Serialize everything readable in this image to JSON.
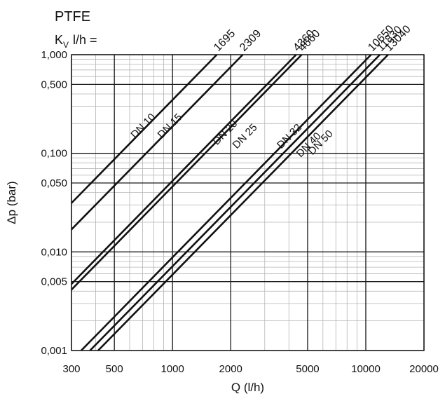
{
  "header": {
    "material": "PTFE",
    "kv_prefix": "K",
    "kv_subscript": "V",
    "kv_suffix": "l/h ="
  },
  "chart_data": {
    "type": "line",
    "title": "PTFE",
    "xlabel": "Q (l/h)",
    "ylabel": "Δp (bar)",
    "x_scale": "log",
    "y_scale": "log",
    "xlim": [
      300,
      20000
    ],
    "ylim": [
      0.001,
      1
    ],
    "grid": true,
    "x_ticks": [
      {
        "value": 300,
        "label": "300"
      },
      {
        "value": 500,
        "label": "500"
      },
      {
        "value": 1000,
        "label": "1000"
      },
      {
        "value": 2000,
        "label": "2000"
      },
      {
        "value": 5000,
        "label": "5000"
      },
      {
        "value": 10000,
        "label": "10000"
      },
      {
        "value": 20000,
        "label": "20000"
      }
    ],
    "y_ticks": [
      {
        "value": 0.001,
        "label": "0,001"
      },
      {
        "value": 0.005,
        "label": "0,005"
      },
      {
        "value": 0.01,
        "label": "0,010"
      },
      {
        "value": 0.05,
        "label": "0,050"
      },
      {
        "value": 0.1,
        "label": "0,100"
      },
      {
        "value": 0.5,
        "label": "0,500"
      },
      {
        "value": 1,
        "label": "1,000"
      }
    ],
    "series": [
      {
        "name": "DN 10",
        "kv": 1695,
        "kv_label": "1695",
        "x": [
          300,
          1695
        ],
        "y": [
          0.0313,
          1.0
        ]
      },
      {
        "name": "DN 15",
        "kv": 2309,
        "kv_label": "2309",
        "x": [
          300,
          2309
        ],
        "y": [
          0.0169,
          1.0
        ]
      },
      {
        "name": "DN 20",
        "kv": 4360,
        "kv_label": "4360",
        "x": [
          300,
          4360
        ],
        "y": [
          0.00473,
          1.0
        ]
      },
      {
        "name": "DN 25",
        "kv": 4660,
        "kv_label": "4660",
        "x": [
          300,
          4660
        ],
        "y": [
          0.00414,
          1.0
        ]
      },
      {
        "name": "DN 32",
        "kv": 10650,
        "kv_label": "10650",
        "x": [
          337,
          10650
        ],
        "y": [
          0.001,
          1.0
        ]
      },
      {
        "name": "DN 40",
        "kv": 11830,
        "kv_label": "11830",
        "x": [
          374,
          11830
        ],
        "y": [
          0.001,
          1.0
        ]
      },
      {
        "name": "DN 50",
        "kv": 13040,
        "kv_label": "13040",
        "x": [
          412,
          13040
        ],
        "y": [
          0.001,
          1.0
        ]
      }
    ],
    "series_labels": [
      {
        "text": "DN 10",
        "x": 640,
        "y": 0.14
      },
      {
        "text": "DN 15",
        "x": 880,
        "y": 0.14
      },
      {
        "text": "DN 20",
        "x": 1700,
        "y": 0.12
      },
      {
        "text": "DN 25",
        "x": 2150,
        "y": 0.11
      },
      {
        "text": "DN 32",
        "x": 3650,
        "y": 0.11
      },
      {
        "text": "DN 40",
        "x": 4600,
        "y": 0.09
      },
      {
        "text": "DN 50",
        "x": 5300,
        "y": 0.095
      }
    ]
  }
}
